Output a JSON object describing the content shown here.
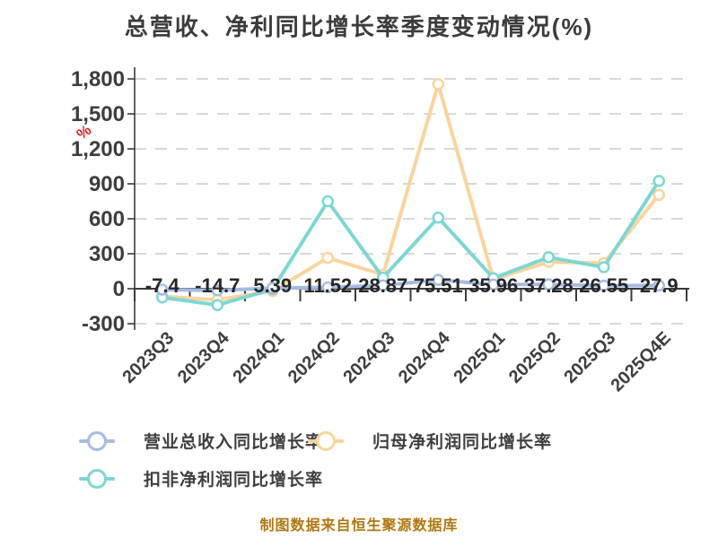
{
  "chart_data": {
    "type": "line",
    "title": "总营收、净利同比增长率季度变动情况(%)",
    "footer": "制图数据来自恒生聚源数据库",
    "legend_position": "bottom-left",
    "grid": {
      "horizontal_dashed": true
    },
    "categories": [
      "2023Q3",
      "2023Q4",
      "2024Q1",
      "2024Q2",
      "2024Q3",
      "2024Q4",
      "2025Q1",
      "2025Q2",
      "2025Q3",
      "2025Q4E"
    ],
    "y_axis": {
      "unit": "%",
      "min": -300,
      "max": 1800,
      "interval": 300,
      "ticks": [
        {
          "value": 1800,
          "label": "1,800"
        },
        {
          "value": 1500,
          "label": "1,500"
        },
        {
          "value": 1200,
          "label": "1,200"
        },
        {
          "value": 900,
          "label": "900"
        },
        {
          "value": 600,
          "label": "600"
        },
        {
          "value": 300,
          "label": "300"
        },
        {
          "value": 0,
          "label": "0"
        },
        {
          "value": -300,
          "label": "-300"
        }
      ]
    },
    "series": [
      {
        "name": "营业总收入同比增长率",
        "color": "#a3bce1",
        "values": [
          -7.4,
          -14.7,
          5.39,
          11.52,
          28.87,
          75.51,
          35.96,
          37.28,
          26.55,
          27.9
        ],
        "labels": [
          "-7.4",
          "-14.7",
          "5.39",
          "11.52",
          "28.87",
          "75.51",
          "35.96",
          "37.28",
          "26.55",
          "27.9"
        ],
        "show_labels": true
      },
      {
        "name": "归母净利润同比增长率",
        "color": "#fad49b",
        "values": [
          -65,
          -95,
          -20,
          265,
          120,
          1755,
          80,
          230,
          220,
          805
        ],
        "show_labels": false
      },
      {
        "name": "扣非净利润同比增长率",
        "color": "#7cd7d3",
        "values": [
          -75,
          -140,
          -5,
          750,
          95,
          610,
          90,
          270,
          185,
          925
        ],
        "show_labels": false
      }
    ],
    "colors": {
      "grid": "#d8d8d8",
      "axis": "#3a3a3a",
      "value_label": "#262626",
      "axis_label": "#3d3d3d",
      "title": "#3b3b3b",
      "footer": "#b0770f",
      "percent_mark": "#dc1f1f",
      "legend_text": "#3f3f3f"
    }
  }
}
